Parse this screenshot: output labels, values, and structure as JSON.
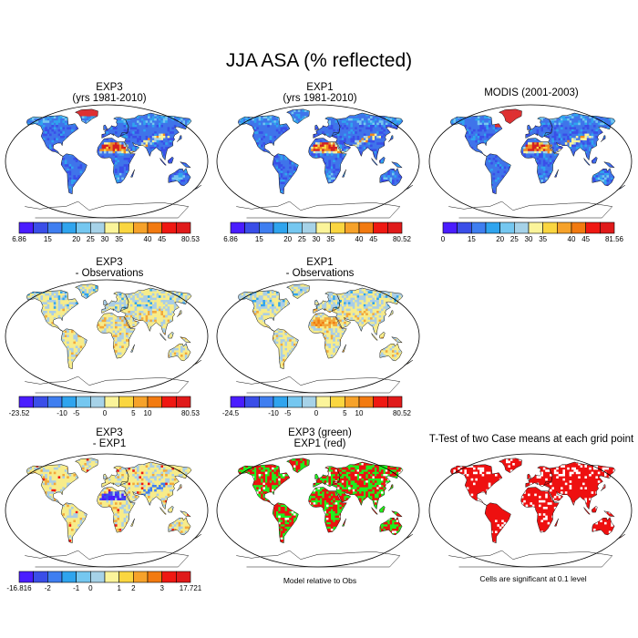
{
  "title": "JJA ASA (% reflected)",
  "colors": {
    "scale12": [
      "#4a1dff",
      "#3a4ee8",
      "#3f7ef0",
      "#2fa4ee",
      "#75c7f0",
      "#a6d2e8",
      "#fbf49a",
      "#fad640",
      "#f6a22a",
      "#f27a10",
      "#ef1812",
      "#e01a1a",
      "#b92b2b"
    ],
    "land_blue": "#3f74ea",
    "desert_orange": "#ef8a20",
    "desert_red": "#d62020",
    "ice_red": "#e03030",
    "diff_yellow": "#f7ec8a",
    "diff_lightblue": "#a9cde6",
    "diff_orange": "#f2a83a",
    "green": "#1ef01e",
    "sig_red": "#ee1010"
  },
  "panels": [
    {
      "id": "exp3",
      "title": [
        "EXP3",
        "(yrs 1981-2010)"
      ],
      "style": "albedo",
      "colorbar": {
        "labels": [
          "6.86",
          "15",
          "20",
          "25",
          "30",
          "35",
          "40",
          "45",
          "80.53"
        ]
      }
    },
    {
      "id": "exp1",
      "title": [
        "EXP1",
        "(yrs 1981-2010)"
      ],
      "style": "albedo",
      "colorbar": {
        "labels": [
          "6.86",
          "15",
          "20",
          "25",
          "30",
          "35",
          "40",
          "45",
          "80.52"
        ]
      }
    },
    {
      "id": "modis",
      "title": [
        "MODIS (2001-2003)"
      ],
      "style": "albedo",
      "colorbar": {
        "labels": [
          "0",
          "15",
          "20",
          "25",
          "30",
          "35",
          "40",
          "45",
          "81.56"
        ]
      }
    },
    {
      "id": "exp3-obs",
      "title": [
        "EXP3",
        "- Observations"
      ],
      "style": "diffobs",
      "colorbar": {
        "labels": [
          "-23.52",
          "-10",
          "-5",
          "0",
          "5",
          "10",
          "80.53"
        ]
      }
    },
    {
      "id": "exp1-obs",
      "title": [
        "EXP1",
        "- Observations"
      ],
      "style": "diffobs2",
      "colorbar": {
        "labels": [
          "-24.5",
          "-10",
          "-5",
          "0",
          "5",
          "10",
          "80.52"
        ]
      }
    },
    {
      "id": "exp3-exp1",
      "title": [
        "EXP3",
        "- EXP1"
      ],
      "style": "diff",
      "colorbar": {
        "labels": [
          "-16.816",
          "-2",
          "-1",
          "0",
          "1",
          "2",
          "3",
          "17.721"
        ]
      }
    },
    {
      "id": "model-rel",
      "title": [
        "EXP3 (green)",
        "EXP1 (red)"
      ],
      "style": "greenred",
      "note": "Model relative to Obs"
    },
    {
      "id": "ttest",
      "title": [
        "T-Test of two Case means at each grid point"
      ],
      "style": "ttest",
      "note": "Cells are significant at 0.1 level"
    }
  ]
}
